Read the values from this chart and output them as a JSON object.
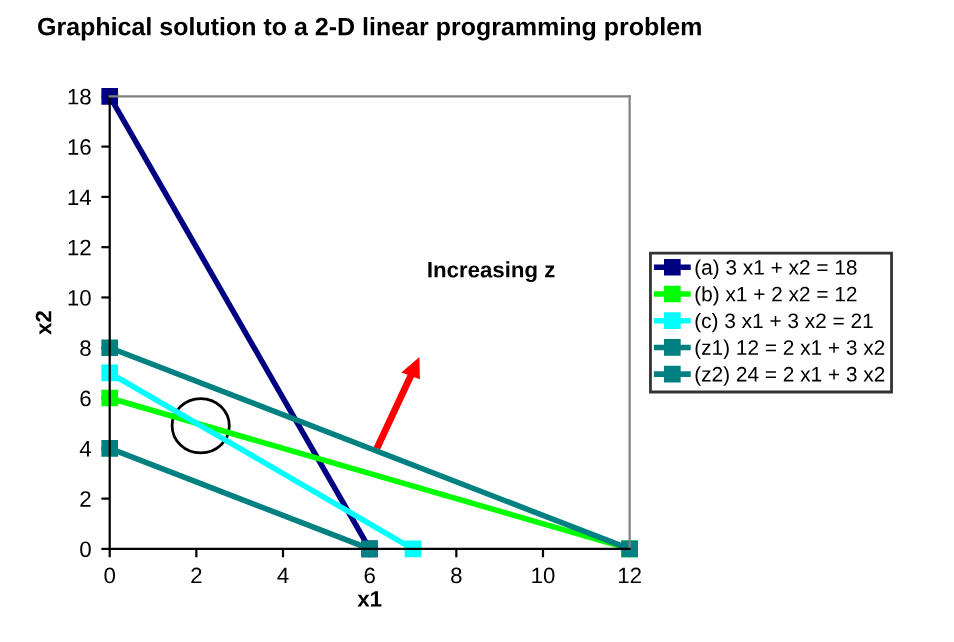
{
  "chart_data": {
    "type": "line",
    "title": "Graphical solution to a 2-D linear programming problem",
    "xlabel": "x1",
    "ylabel": "x2",
    "series": [
      {
        "name": "(a) 3 x1 + x2 = 18",
        "color": "#000080",
        "x": [
          0,
          6
        ],
        "values": [
          18,
          0
        ]
      },
      {
        "name": "(b) x1 + 2 x2 = 12",
        "color": "#00ff00",
        "x": [
          0,
          12
        ],
        "values": [
          6,
          0
        ]
      },
      {
        "name": "(c) 3 x1 + 3 x2 = 21",
        "color": "#00ffff",
        "x": [
          0,
          7
        ],
        "values": [
          7,
          0
        ]
      },
      {
        "name": "(z1) 12 = 2 x1 + 3 x2",
        "color": "#008080",
        "x": [
          0,
          6
        ],
        "values": [
          4,
          0
        ]
      },
      {
        "name": "(z2) 24 = 2 x1 + 3 x2",
        "color": "#008080",
        "x": [
          0,
          12
        ],
        "values": [
          8,
          0
        ]
      }
    ],
    "annotations": [
      "Increasing z"
    ],
    "xlim": [
      0,
      12
    ],
    "ylim": [
      0,
      18
    ],
    "xticks": [
      0,
      2,
      4,
      6,
      8,
      10,
      12
    ],
    "yticks": [
      0,
      2,
      4,
      6,
      8,
      10,
      12,
      14,
      16,
      18
    ],
    "grid": false,
    "legend": "right",
    "marker": "square",
    "line_style": "solid"
  }
}
